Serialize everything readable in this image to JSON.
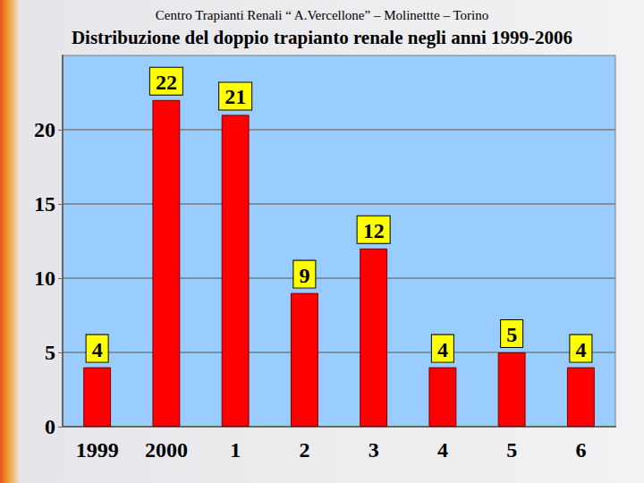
{
  "chart_data": {
    "type": "bar",
    "title": "Distribuzione del doppio trapianto renale negli anni 1999-2006",
    "subtitle": "Centro Trapianti Renali “ A.Vercellone” – Molinettte – Torino",
    "categories": [
      "1999",
      "2000",
      "1",
      "2",
      "3",
      "4",
      "5",
      "6"
    ],
    "values": [
      4,
      22,
      21,
      9,
      12,
      4,
      5,
      4
    ],
    "color": "#ff0000",
    "ylim": [
      0,
      25
    ],
    "yticks": [
      0,
      5,
      10,
      15,
      20
    ],
    "grid": true,
    "data_labels": true
  }
}
